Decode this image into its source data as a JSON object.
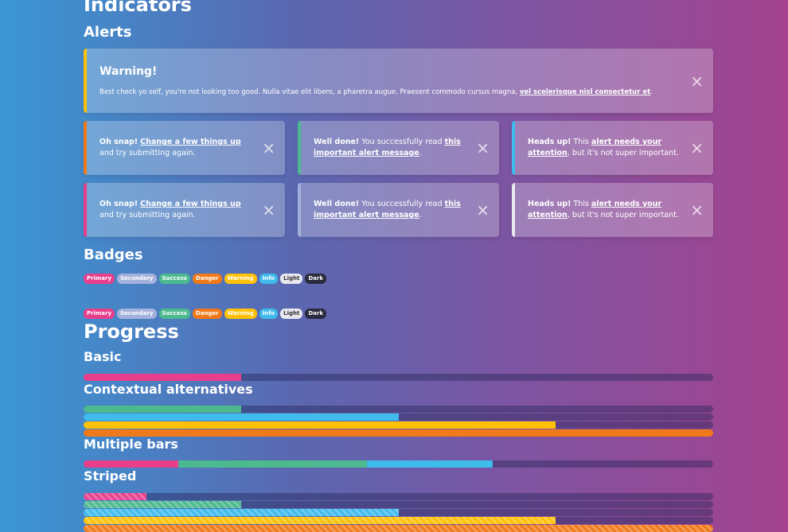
{
  "headings": {
    "indicators": "Indicators",
    "alerts": "Alerts",
    "badges": "Badges",
    "progress": "Progress",
    "basic": "Basic",
    "contextual": "Contextual alternatives",
    "multiple": "Multiple bars",
    "striped": "Striped"
  },
  "alert_main": {
    "title": "Warning!",
    "body": "Best check yo self, you're not looking too good. Nulla vitae elit libero, a pharetra augue. Praesent commodo cursus magna, ",
    "link": "vel scelerisque nisl consectetur et",
    "end": "."
  },
  "alert_small": {
    "snap": {
      "strong": "Oh snap!",
      "link": "Change a few things up",
      "rest": " and try submitting again."
    },
    "done": {
      "strong": "Well done!",
      "pre": " You successfully read ",
      "link": "this important alert message",
      "end": "."
    },
    "heads": {
      "strong": "Heads up!",
      "pre": " This ",
      "link": "alert needs your attention",
      "rest": ", but it's not super important."
    }
  },
  "close_glyph": "×",
  "badge_labels": [
    "Primary",
    "Secondary",
    "Success",
    "Danger",
    "Warning",
    "Info",
    "Light",
    "Dark"
  ],
  "colors": {
    "primary": "#e83e8c",
    "secondary": "#a3b1dc",
    "success": "#4cb98f",
    "danger": "#f07a1a",
    "warning": "#ffc107",
    "info": "#3fbbec",
    "light": "#e8e8ee",
    "dark": "#2a2b3d"
  },
  "progress": {
    "basic": 25,
    "contextual": [
      25,
      50,
      75,
      100
    ],
    "multiple": [
      15,
      30,
      20
    ],
    "striped": [
      10,
      25,
      50,
      75,
      100
    ]
  }
}
